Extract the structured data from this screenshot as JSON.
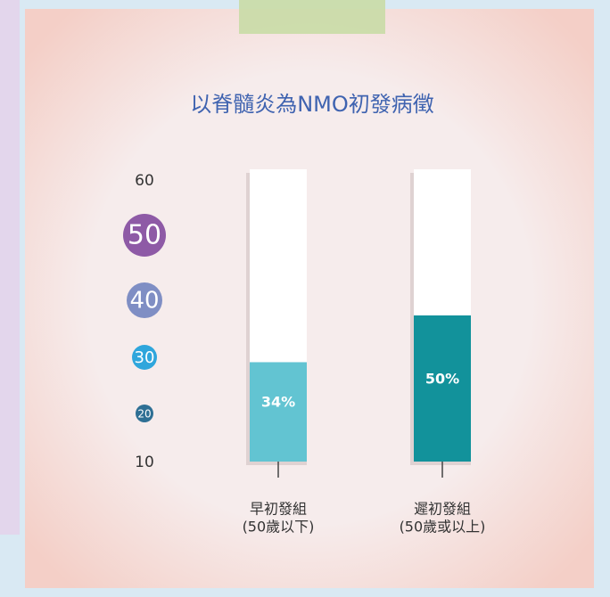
{
  "chart_data": {
    "type": "bar",
    "title": "以脊髓炎為NMO初發病徵",
    "categories": [
      "早初發組",
      "遲初發組"
    ],
    "category_notes": [
      "(50歲以下)",
      "(50歲或以上)"
    ],
    "values": [
      34,
      50
    ],
    "value_labels": [
      "34%",
      "50%"
    ],
    "colors": [
      "#62c4d2",
      "#12929b"
    ],
    "ylim": [
      0,
      100
    ],
    "age_scale": [
      60,
      50,
      40,
      30,
      20,
      10
    ],
    "age_scale_colors": [
      null,
      "#8e5aa6",
      "#7f8ec4",
      "#2fa6dc",
      "#2e6f94",
      null
    ]
  }
}
